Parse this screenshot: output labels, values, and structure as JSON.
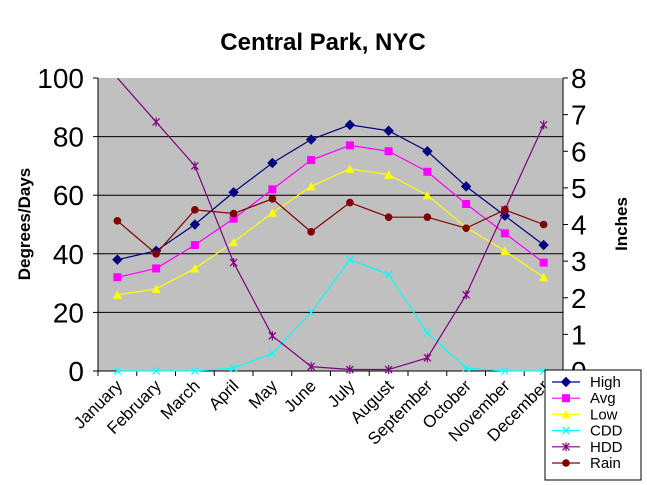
{
  "chart_data": {
    "type": "line",
    "title": "Central Park, NYC",
    "ylabel": "Degrees/Days",
    "y2label": "Inches",
    "ylim": [
      0,
      100
    ],
    "y2lim": [
      0,
      8
    ],
    "yticks": [
      "0",
      "20",
      "40",
      "60",
      "80",
      "100"
    ],
    "y2ticks": [
      "0",
      "1",
      "2",
      "3",
      "4",
      "5",
      "6",
      "7",
      "8"
    ],
    "grid": true,
    "legend_position": "bottom-right",
    "plot_background": "#c0c0c0",
    "categories": [
      "January",
      "February",
      "March",
      "April",
      "May",
      "June",
      "July",
      "August",
      "September",
      "October",
      "November",
      "December"
    ],
    "series": [
      {
        "name": "High",
        "axis": "left",
        "color": "#000080",
        "marker": "diamond",
        "values": [
          38,
          41,
          50,
          61,
          71,
          79,
          84,
          82,
          75,
          63,
          53,
          43
        ]
      },
      {
        "name": "Avg",
        "axis": "left",
        "color": "#ff00ff",
        "marker": "square",
        "values": [
          32,
          35,
          43,
          52,
          62,
          72,
          77,
          75,
          68,
          57,
          47,
          37
        ]
      },
      {
        "name": "Low",
        "axis": "left",
        "color": "#ffff00",
        "marker": "triangle",
        "values": [
          26,
          28,
          35,
          44,
          54,
          63,
          69,
          67,
          60,
          49,
          41,
          32
        ]
      },
      {
        "name": "CDD",
        "axis": "left",
        "color": "#00ffff",
        "marker": "x",
        "values": [
          0,
          0,
          0,
          1,
          6,
          20,
          38,
          33,
          13,
          1,
          0,
          0
        ]
      },
      {
        "name": "HDD",
        "axis": "left",
        "color": "#800080",
        "marker": "star",
        "values": [
          102,
          85,
          70,
          37,
          12,
          1.5,
          0.5,
          0.5,
          4.5,
          26,
          55,
          84
        ]
      },
      {
        "name": "Rain",
        "axis": "right",
        "color": "#800000",
        "marker": "circle",
        "values": [
          4.1,
          3.2,
          4.4,
          4.3,
          4.7,
          3.8,
          4.6,
          4.2,
          4.2,
          3.9,
          4.4,
          4.0
        ]
      }
    ]
  }
}
